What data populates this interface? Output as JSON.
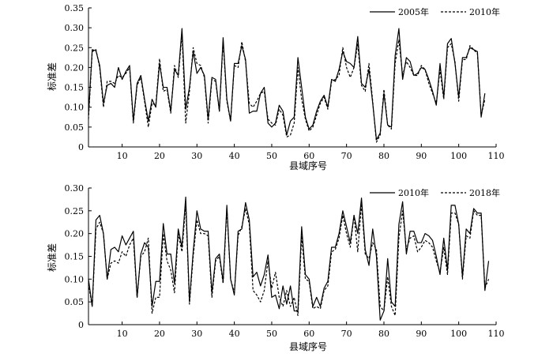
{
  "chart_data": [
    {
      "type": "line",
      "xlabel": "县域序号",
      "ylabel": "标准差",
      "xlim": [
        1,
        110
      ],
      "ylim": [
        0,
        0.35
      ],
      "xticks": [
        10,
        20,
        30,
        40,
        50,
        60,
        70,
        80,
        90,
        100,
        110
      ],
      "yticks": [
        "0",
        "0.05",
        "0.10",
        "0.15",
        "0.20",
        "0.25",
        "0.30",
        "0.35"
      ],
      "grid": false,
      "legend_position": "top-right",
      "series": [
        {
          "name": "2005年",
          "style": "solid",
          "color": "#000000",
          "values": [
            0.08,
            0.245,
            0.242,
            0.205,
            0.11,
            0.155,
            0.16,
            0.15,
            0.2,
            0.17,
            0.19,
            0.205,
            0.065,
            0.16,
            0.18,
            0.12,
            0.065,
            0.12,
            0.1,
            0.21,
            0.15,
            0.15,
            0.09,
            0.195,
            0.18,
            0.298,
            0.095,
            0.15,
            0.24,
            0.185,
            0.2,
            0.18,
            0.07,
            0.175,
            0.17,
            0.09,
            0.275,
            0.12,
            0.065,
            0.21,
            0.21,
            0.255,
            0.22,
            0.085,
            0.09,
            0.09,
            0.135,
            0.15,
            0.06,
            0.05,
            0.06,
            0.105,
            0.09,
            0.03,
            0.065,
            0.075,
            0.225,
            0.15,
            0.075,
            0.045,
            0.055,
            0.09,
            0.115,
            0.13,
            0.1,
            0.17,
            0.165,
            0.195,
            0.24,
            0.215,
            0.21,
            0.2,
            0.278,
            0.16,
            0.15,
            0.195,
            0.11,
            0.018,
            0.035,
            0.135,
            0.055,
            0.05,
            0.23,
            0.298,
            0.17,
            0.225,
            0.215,
            0.18,
            0.185,
            0.2,
            0.195,
            0.17,
            0.14,
            0.105,
            0.21,
            0.125,
            0.26,
            0.273,
            0.21,
            0.125,
            0.225,
            0.225,
            0.25,
            0.245,
            0.24,
            0.075,
            0.135
          ]
        },
        {
          "name": "2010年",
          "style": "dashed",
          "color": "#000000",
          "values": [
            0.07,
            0.24,
            0.245,
            0.2,
            0.1,
            0.165,
            0.165,
            0.16,
            0.18,
            0.175,
            0.185,
            0.2,
            0.06,
            0.155,
            0.175,
            0.115,
            0.05,
            0.11,
            0.105,
            0.222,
            0.14,
            0.145,
            0.085,
            0.205,
            0.175,
            0.285,
            0.06,
            0.14,
            0.25,
            0.21,
            0.205,
            0.175,
            0.06,
            0.17,
            0.165,
            0.09,
            0.265,
            0.115,
            0.065,
            0.205,
            0.2,
            0.265,
            0.215,
            0.11,
            0.1,
            0.115,
            0.135,
            0.14,
            0.07,
            0.06,
            0.055,
            0.095,
            0.08,
            0.025,
            0.03,
            0.06,
            0.2,
            0.12,
            0.07,
            0.04,
            0.05,
            0.08,
            0.11,
            0.125,
            0.095,
            0.165,
            0.17,
            0.18,
            0.25,
            0.2,
            0.175,
            0.2,
            0.26,
            0.155,
            0.14,
            0.21,
            0.115,
            0.012,
            0.03,
            0.145,
            0.055,
            0.045,
            0.21,
            0.27,
            0.18,
            0.215,
            0.2,
            0.18,
            0.18,
            0.205,
            0.195,
            0.16,
            0.135,
            0.11,
            0.195,
            0.12,
            0.25,
            0.26,
            0.215,
            0.115,
            0.22,
            0.22,
            0.255,
            0.245,
            0.235,
            0.08,
            0.12
          ]
        }
      ]
    },
    {
      "type": "line",
      "xlabel": "县域序号",
      "ylabel": "标准差",
      "xlim": [
        1,
        110
      ],
      "ylim": [
        0,
        0.3
      ],
      "xticks": [
        10,
        20,
        30,
        40,
        50,
        60,
        70,
        80,
        90,
        100,
        110
      ],
      "yticks": [
        "0",
        "0.05",
        "0.10",
        "0.15",
        "0.20",
        "0.25",
        "0.30"
      ],
      "grid": false,
      "legend_position": "top-right",
      "series": [
        {
          "name": "2010年",
          "style": "solid",
          "color": "#000000",
          "values": [
            0.1,
            0.04,
            0.23,
            0.24,
            0.2,
            0.1,
            0.165,
            0.17,
            0.16,
            0.195,
            0.175,
            0.19,
            0.205,
            0.06,
            0.155,
            0.18,
            0.17,
            0.04,
            0.095,
            0.095,
            0.222,
            0.155,
            0.155,
            0.09,
            0.21,
            0.17,
            0.28,
            0.05,
            0.16,
            0.25,
            0.21,
            0.205,
            0.205,
            0.07,
            0.145,
            0.155,
            0.095,
            0.262,
            0.1,
            0.065,
            0.205,
            0.21,
            0.268,
            0.23,
            0.105,
            0.115,
            0.085,
            0.11,
            0.153,
            0.06,
            0.065,
            0.035,
            0.085,
            0.045,
            0.085,
            0.03,
            0.03,
            0.215,
            0.11,
            0.1,
            0.04,
            0.06,
            0.04,
            0.08,
            0.095,
            0.17,
            0.17,
            0.2,
            0.25,
            0.215,
            0.18,
            0.24,
            0.2,
            0.278,
            0.165,
            0.13,
            0.21,
            0.15,
            0.01,
            0.03,
            0.145,
            0.05,
            0.04,
            0.22,
            0.27,
            0.155,
            0.205,
            0.205,
            0.18,
            0.18,
            0.2,
            0.195,
            0.185,
            0.15,
            0.11,
            0.19,
            0.12,
            0.262,
            0.262,
            0.22,
            0.105,
            0.21,
            0.2,
            0.255,
            0.245,
            0.245,
            0.075,
            0.14
          ]
        },
        {
          "name": "2018年",
          "style": "dashed",
          "color": "#000000",
          "values": [
            0.09,
            0.04,
            0.21,
            0.225,
            0.2,
            0.1,
            0.135,
            0.14,
            0.135,
            0.16,
            0.15,
            0.175,
            0.19,
            0.06,
            0.15,
            0.16,
            0.19,
            0.025,
            0.06,
            0.06,
            0.2,
            0.14,
            0.12,
            0.07,
            0.2,
            0.16,
            0.265,
            0.045,
            0.15,
            0.23,
            0.2,
            0.2,
            0.195,
            0.06,
            0.14,
            0.15,
            0.09,
            0.255,
            0.1,
            0.07,
            0.195,
            0.215,
            0.255,
            0.22,
            0.075,
            0.065,
            0.05,
            0.075,
            0.14,
            0.08,
            0.115,
            0.06,
            0.04,
            0.075,
            0.04,
            0.06,
            0.02,
            0.195,
            0.1,
            0.095,
            0.035,
            0.04,
            0.035,
            0.075,
            0.085,
            0.16,
            0.165,
            0.19,
            0.24,
            0.2,
            0.17,
            0.24,
            0.16,
            0.265,
            0.155,
            0.145,
            0.18,
            0.165,
            0.04,
            0.03,
            0.105,
            0.04,
            0.02,
            0.19,
            0.25,
            0.165,
            0.19,
            0.195,
            0.16,
            0.17,
            0.185,
            0.18,
            0.17,
            0.14,
            0.115,
            0.17,
            0.11,
            0.245,
            0.245,
            0.22,
            0.1,
            0.195,
            0.19,
            0.25,
            0.24,
            0.24,
            0.08,
            0.1
          ]
        }
      ]
    }
  ]
}
